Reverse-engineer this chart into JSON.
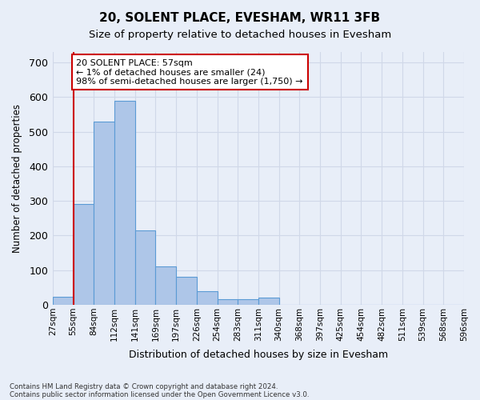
{
  "title1": "20, SOLENT PLACE, EVESHAM, WR11 3FB",
  "title2": "Size of property relative to detached houses in Evesham",
  "xlabel": "Distribution of detached houses by size in Evesham",
  "ylabel": "Number of detached properties",
  "footnote1": "Contains HM Land Registry data © Crown copyright and database right 2024.",
  "footnote2": "Contains public sector information licensed under the Open Government Licence v3.0.",
  "bin_labels": [
    "27sqm",
    "55sqm",
    "84sqm",
    "112sqm",
    "141sqm",
    "169sqm",
    "197sqm",
    "226sqm",
    "254sqm",
    "283sqm",
    "311sqm",
    "340sqm",
    "368sqm",
    "397sqm",
    "425sqm",
    "454sqm",
    "482sqm",
    "511sqm",
    "539sqm",
    "568sqm",
    "596sqm"
  ],
  "bar_values": [
    24,
    290,
    530,
    590,
    215,
    110,
    80,
    40,
    15,
    15,
    20,
    0,
    0,
    0,
    0,
    0,
    0,
    0,
    0,
    0
  ],
  "bar_color": "#aec6e8",
  "bar_edge_color": "#5b9bd5",
  "grid_color": "#d0d8e8",
  "background_color": "#e8eef8",
  "red_line_x": 1,
  "red_line_color": "#cc0000",
  "annotation_text": "20 SOLENT PLACE: 57sqm\n← 1% of detached houses are smaller (24)\n98% of semi-detached houses are larger (1,750) →",
  "annotation_box_color": "#ffffff",
  "annotation_box_edge_color": "#cc0000",
  "ylim": [
    0,
    730
  ],
  "yticks": [
    0,
    100,
    200,
    300,
    400,
    500,
    600,
    700
  ]
}
